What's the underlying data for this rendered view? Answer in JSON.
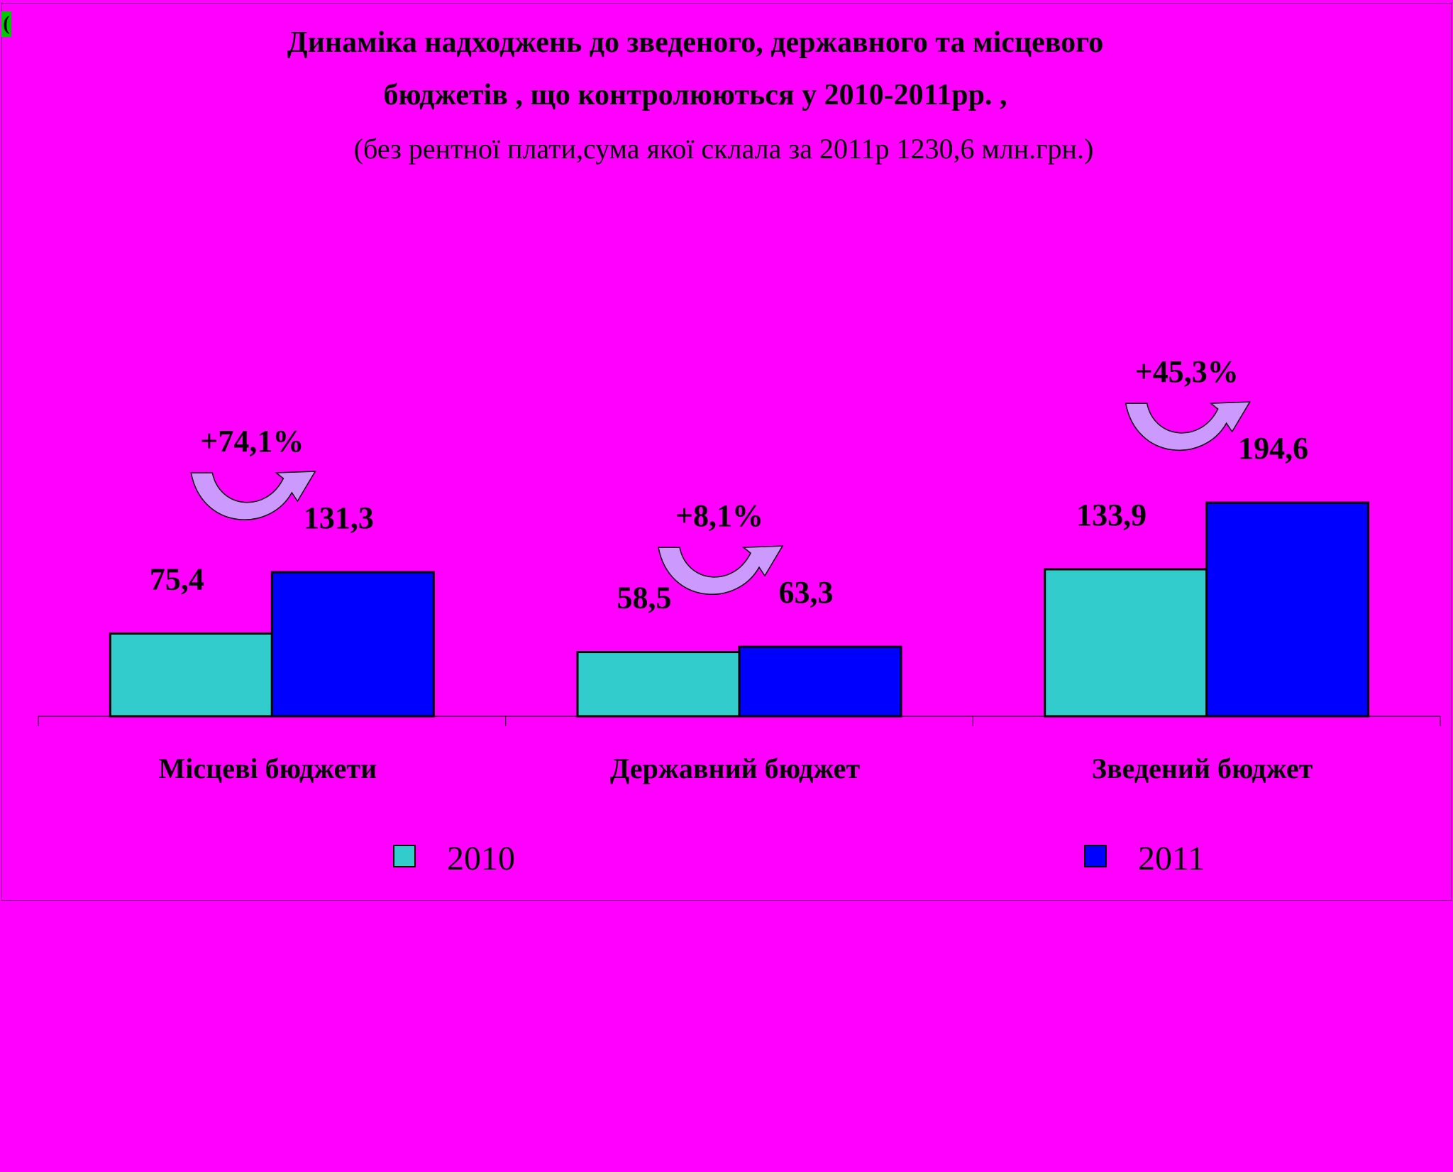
{
  "corner_mark": "(",
  "title_lines": [
    "Динаміка надходжень до зведеного, державного та місцевого",
    "бюджетів , що контролюються у 2010-2011рр. ,"
  ],
  "subtitle": "(без рентної плати,сума якої склала за 2011р 1230,6 млн.грн.)",
  "colors": {
    "background": "#ff00ff",
    "series_2010": "#33cccc",
    "series_2011": "#0000ff",
    "arrow": "#cc99ff"
  },
  "chart_data": {
    "type": "bar",
    "categories": [
      "Місцеві бюджети",
      "Державний бюджет",
      "Зведений бюджет"
    ],
    "series": [
      {
        "name": "2010",
        "values": [
          75.4,
          58.5,
          133.9
        ],
        "labels": [
          "75,4",
          "58,5",
          "133,9"
        ]
      },
      {
        "name": "2011",
        "values": [
          131.3,
          63.3,
          194.6
        ],
        "labels": [
          "131,3",
          "63,3",
          "194,6"
        ]
      }
    ],
    "growth_labels": [
      "+74,1%",
      "+8,1%",
      "+45,3%"
    ],
    "ylim": [
      0,
      230
    ],
    "grid": false,
    "legend_position": "bottom"
  }
}
